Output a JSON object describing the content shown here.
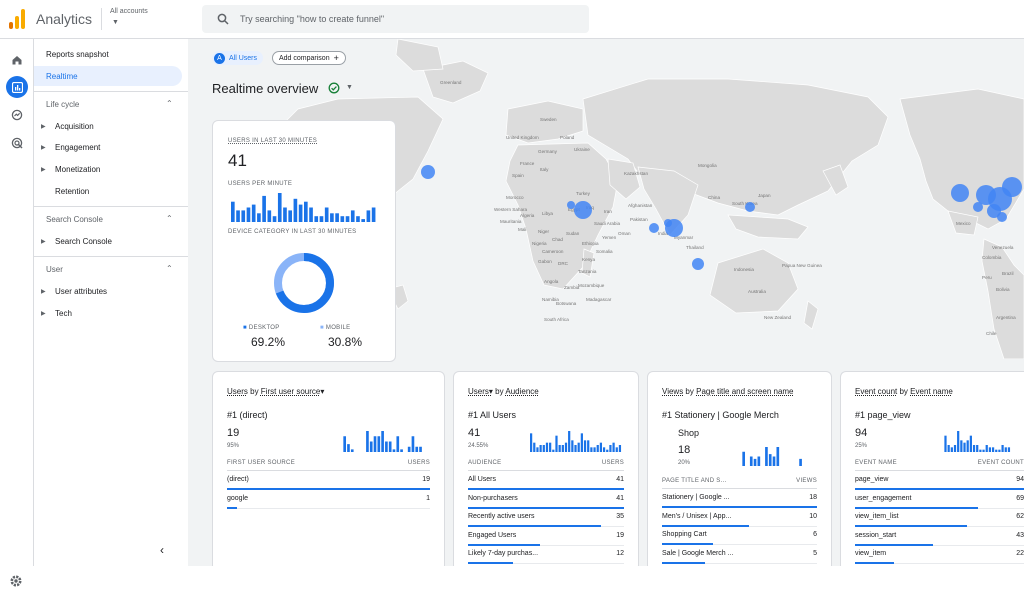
{
  "app": {
    "title": "Analytics",
    "accounts_label": "All accounts",
    "search_placeholder": "Try searching \"how to create funnel\""
  },
  "colors": {
    "accent": "#1a73e8",
    "nav_active_bg": "#e8f0fe",
    "map_land": "#dcdcdc",
    "map_dot": "#4285f4"
  },
  "nav": {
    "reports_snapshot": "Reports snapshot",
    "realtime": "Realtime",
    "sections": [
      {
        "title": "Life cycle",
        "items": [
          {
            "label": "Acquisition",
            "expandable": true
          },
          {
            "label": "Engagement",
            "expandable": true
          },
          {
            "label": "Monetization",
            "expandable": true
          },
          {
            "label": "Retention",
            "expandable": false
          }
        ]
      },
      {
        "title": "Search Console",
        "items": [
          {
            "label": "Search Console",
            "expandable": true
          }
        ]
      },
      {
        "title": "User",
        "items": [
          {
            "label": "User attributes",
            "expandable": true
          },
          {
            "label": "Tech",
            "expandable": true
          }
        ]
      }
    ]
  },
  "comparison": {
    "all_users": "All Users",
    "all_users_badge": "A",
    "add_comparison": "Add comparison"
  },
  "realtime_title": "Realtime overview",
  "map_labels": {
    "greenland": "Greenland",
    "united_kingdom": "United Kingdom",
    "sweden": "Sweden",
    "poland": "Poland",
    "ukraine": "Ukraine",
    "kazakhstan": "Kazakhstan",
    "mongolia": "Mongolia",
    "china": "China",
    "japan": "Japan",
    "south_korea": "South Korea",
    "turkey": "Turkey",
    "iran": "Iran",
    "iraq": "Iraq",
    "afghanistan": "Afghanistan",
    "pakistan": "Pakistan",
    "india": "India",
    "myanmar": "Myanmar",
    "thailand": "Thailand",
    "indonesia": "Indonesia",
    "papua_new_guinea": "Papua New Guinea",
    "australia": "Australia",
    "new_zealand": "New Zealand",
    "egypt": "Egypt",
    "libya": "Libya",
    "algeria": "Algeria",
    "saudi_arabia": "Saudi Arabia",
    "sudan": "Sudan",
    "niger": "Niger",
    "mali": "Mali",
    "chad": "Chad",
    "nigeria": "Nigeria",
    "ethiopia": "Ethiopia",
    "kenya": "Kenya",
    "tanzania": "Tanzania",
    "drc": "DRC",
    "angola": "Angola",
    "namibia": "Namibia",
    "south_africa": "South Africa",
    "madagascar": "Madagascar",
    "botswana": "Botswana",
    "mexico": "Mexico",
    "venezuela": "Venezuela",
    "colombia": "Colombia",
    "peru": "Peru",
    "brazil": "Brazil",
    "bolivia": "Bolivia",
    "argentina": "Argentina",
    "chile": "Chile",
    "spain": "Spain",
    "france": "France",
    "germany": "Germany",
    "italy": "Italy",
    "morocco": "Morocco",
    "mauritania": "Mauritania",
    "western_sahara": "Western Sahara",
    "oman": "Oman",
    "yemen": "Yemen",
    "somalia": "Somalia",
    "zambia": "Zambia",
    "mozambique": "Mozambique",
    "cameroon": "Cameroon",
    "gabon": "Gabon"
  },
  "users_card": {
    "users_label": "USERS IN LAST 30 MINUTES",
    "users_value": "41",
    "per_minute_label": "USERS PER MINUTE",
    "per_minute_values": [
      7,
      4,
      4,
      5,
      6,
      3,
      9,
      4,
      2,
      10,
      5,
      4,
      8,
      6,
      7,
      5,
      2,
      2,
      5,
      3,
      3,
      2,
      2,
      4,
      2,
      1,
      4,
      5
    ],
    "device_label": "DEVICE CATEGORY IN LAST 30 MINUTES",
    "desktop_label": "DESKTOP",
    "desktop_value": "69.2%",
    "desktop_share": 69.2,
    "mobile_label": "MOBILE",
    "mobile_value": "30.8%",
    "mobile_share": 30.8
  },
  "panels": [
    {
      "title_metric": "Users",
      "title_dim": "First user source",
      "title_mid": " by ",
      "title_suffix": "▾",
      "top_rank": "#1 (direct)",
      "top_value": "19",
      "top_pct": "95%",
      "spark": [
        0,
        0,
        0,
        0,
        0,
        0,
        0,
        0,
        6,
        3,
        1,
        0,
        0,
        0,
        8,
        4,
        6,
        6,
        8,
        4,
        4,
        1,
        6,
        1,
        0,
        2,
        6,
        2,
        2
      ],
      "col_left": "FIRST USER SOURCE",
      "col_right": "USERS",
      "rows": [
        {
          "label": "(direct)",
          "value": "19",
          "share": 1.0
        },
        {
          "label": "google",
          "value": "1",
          "share": 0.05
        }
      ]
    },
    {
      "title_metric": "Users▾",
      "title_dim": "Audience",
      "title_mid": " by ",
      "title_suffix": "",
      "top_rank": "#1  All Users",
      "top_value": "41",
      "top_pct": "24.55%",
      "spark": [
        8,
        4,
        2,
        3,
        3,
        4,
        4,
        1,
        7,
        3,
        3,
        4,
        9,
        5,
        3,
        4,
        8,
        5,
        5,
        2,
        2,
        3,
        4,
        2,
        1,
        3,
        4,
        2,
        3
      ],
      "col_left": "AUDIENCE",
      "col_right": "USERS",
      "rows": [
        {
          "label": "All Users",
          "value": "41",
          "share": 1.0
        },
        {
          "label": "Non-purchasers",
          "value": "41",
          "share": 1.0
        },
        {
          "label": "Recently active users",
          "value": "35",
          "share": 0.85
        },
        {
          "label": "Engaged Users",
          "value": "19",
          "share": 0.46
        },
        {
          "label": "Likely 7-day purchas...",
          "value": "12",
          "share": 0.29
        }
      ]
    },
    {
      "title_metric": "Views",
      "title_dim": "Page title and screen name",
      "title_mid": " by ",
      "title_suffix": "",
      "top_rank": "#1  Stationery | Google Merch",
      "top_rank2": "Shop",
      "top_value": "18",
      "top_pct": "20%",
      "spark": [
        0,
        0,
        0,
        0,
        0,
        0,
        0,
        0,
        6,
        0,
        4,
        3,
        4,
        0,
        8,
        5,
        4,
        8,
        0,
        0,
        0,
        0,
        0,
        3,
        0,
        0,
        0,
        0,
        0
      ],
      "col_left": "PAGE TITLE AND S...",
      "col_right": "VIEWS",
      "rows": [
        {
          "label": "Stationery | Google ...",
          "value": "18",
          "share": 1.0
        },
        {
          "label": "Men's / Unisex | App...",
          "value": "10",
          "share": 0.56
        },
        {
          "label": "Shopping Cart",
          "value": "6",
          "share": 0.33
        },
        {
          "label": "Sale | Google Merch ...",
          "value": "5",
          "share": 0.28
        }
      ]
    },
    {
      "title_metric": "Event count",
      "title_dim": "Event name",
      "title_mid": " by ",
      "title_suffix": "",
      "top_rank": "#1  page_view",
      "top_value": "94",
      "top_pct": "25%",
      "spark": [
        0,
        0,
        0,
        0,
        0,
        0,
        0,
        0,
        7,
        3,
        2,
        3,
        9,
        5,
        4,
        5,
        7,
        3,
        3,
        1,
        1,
        3,
        2,
        2,
        1,
        1,
        3,
        2,
        2
      ],
      "col_left": "EVENT NAME",
      "col_right": "EVENT COUNT",
      "rows": [
        {
          "label": "page_view",
          "value": "94",
          "share": 1.0
        },
        {
          "label": "user_engagement",
          "value": "69",
          "share": 0.73
        },
        {
          "label": "view_item_list",
          "value": "62",
          "share": 0.66
        },
        {
          "label": "session_start",
          "value": "43",
          "share": 0.46
        },
        {
          "label": "view_item",
          "value": "22",
          "share": 0.23
        }
      ]
    }
  ]
}
